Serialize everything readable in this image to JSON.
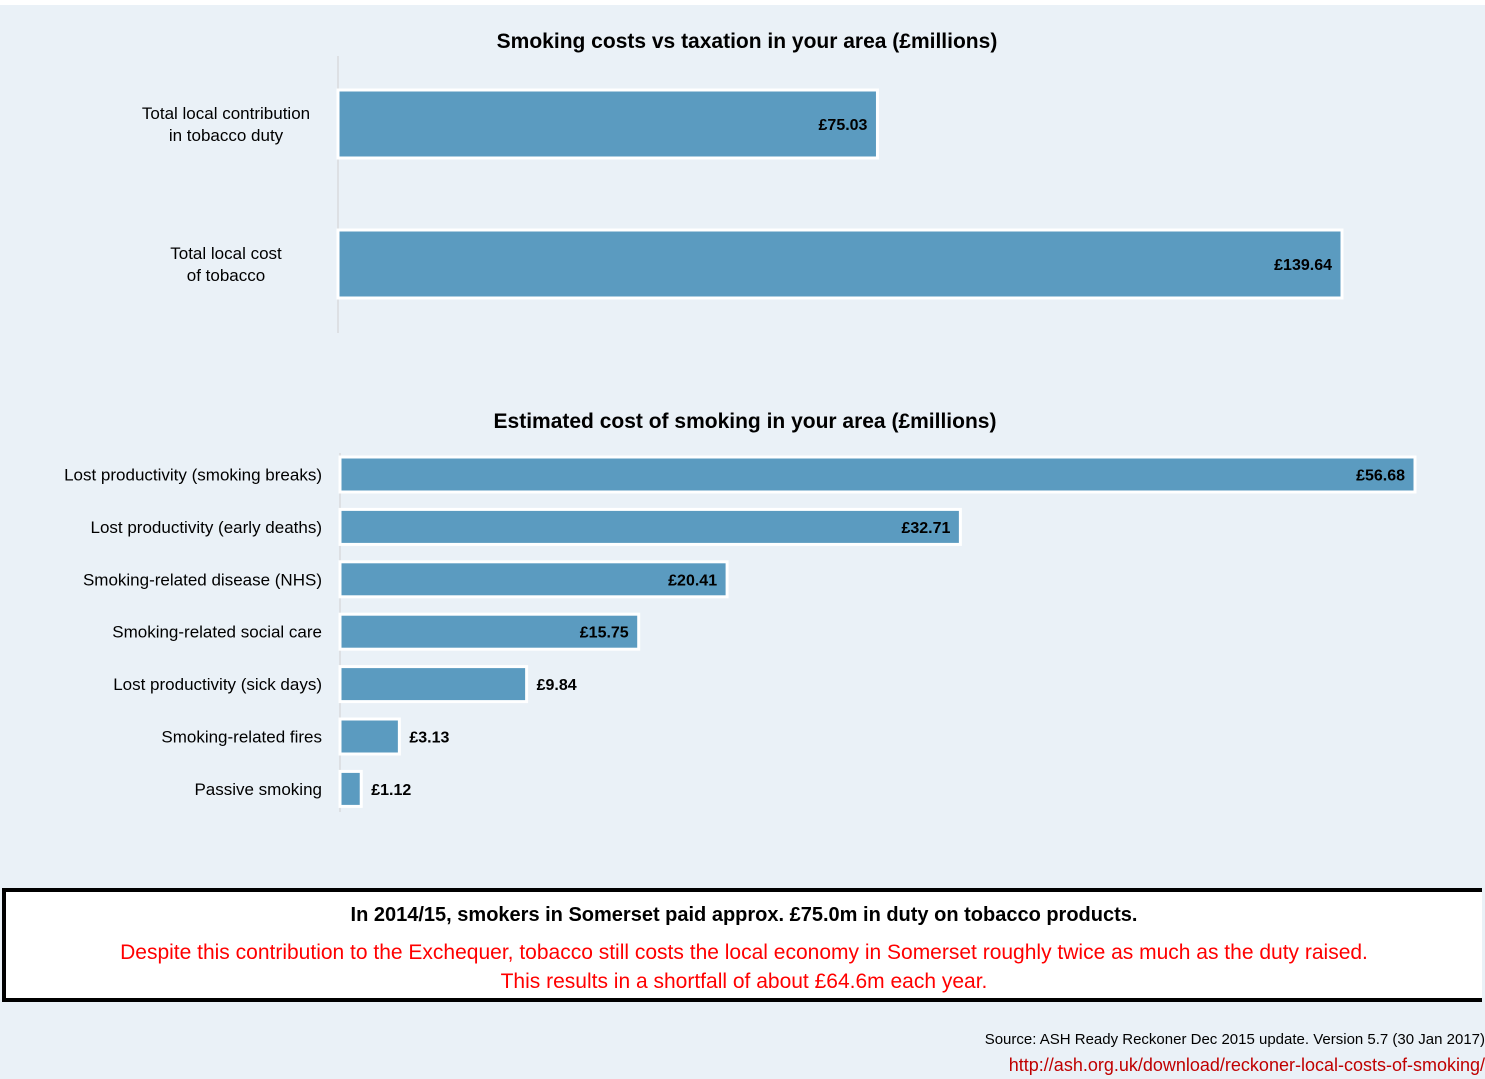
{
  "chart_data": [
    {
      "type": "bar",
      "orientation": "horizontal",
      "title": "Smoking costs vs taxation in your area (£millions)",
      "categories": [
        [
          "Total local contribution",
          "in tobacco duty"
        ],
        [
          "Total local cost",
          "of tobacco"
        ]
      ],
      "values": [
        75.03,
        139.64
      ],
      "value_labels": [
        "£75.03",
        "£139.64"
      ],
      "bar_color": "#5b9bc0",
      "xlim": [
        0,
        139.64
      ],
      "grid": false
    },
    {
      "type": "bar",
      "orientation": "horizontal",
      "title": "Estimated cost of smoking in your area (£millions)",
      "categories": [
        "Lost productivity (smoking breaks)",
        "Lost productivity (early deaths)",
        "Smoking-related disease (NHS)",
        "Smoking-related social care",
        "Lost productivity (sick days)",
        "Smoking-related fires",
        "Passive smoking"
      ],
      "values": [
        56.68,
        32.71,
        20.41,
        15.75,
        9.84,
        3.13,
        1.12
      ],
      "value_labels": [
        "£56.68",
        "£32.71",
        "£20.41",
        "£15.75",
        "£9.84",
        "£3.13",
        "£1.12"
      ],
      "bar_color": "#5b9bc0",
      "xlim": [
        0,
        56.68
      ],
      "grid": false
    }
  ],
  "summary": {
    "headline": "In 2014/15, smokers in Somerset paid approx. £75.0m in duty on tobacco products.",
    "detail_line1": "Despite this contribution to the Exchequer, tobacco still costs the local economy in Somerset roughly twice as much as the duty raised.",
    "detail_line2": "This results in a shortfall of about £64.6m each year.",
    "detail_color": "#ff0000"
  },
  "source": {
    "text": "Source: ASH Ready Reckoner Dec 2015 update. Version 5.7 (30 Jan 2017)",
    "link": "http://ash.org.uk/download/reckoner-local-costs-of-smoking/"
  }
}
